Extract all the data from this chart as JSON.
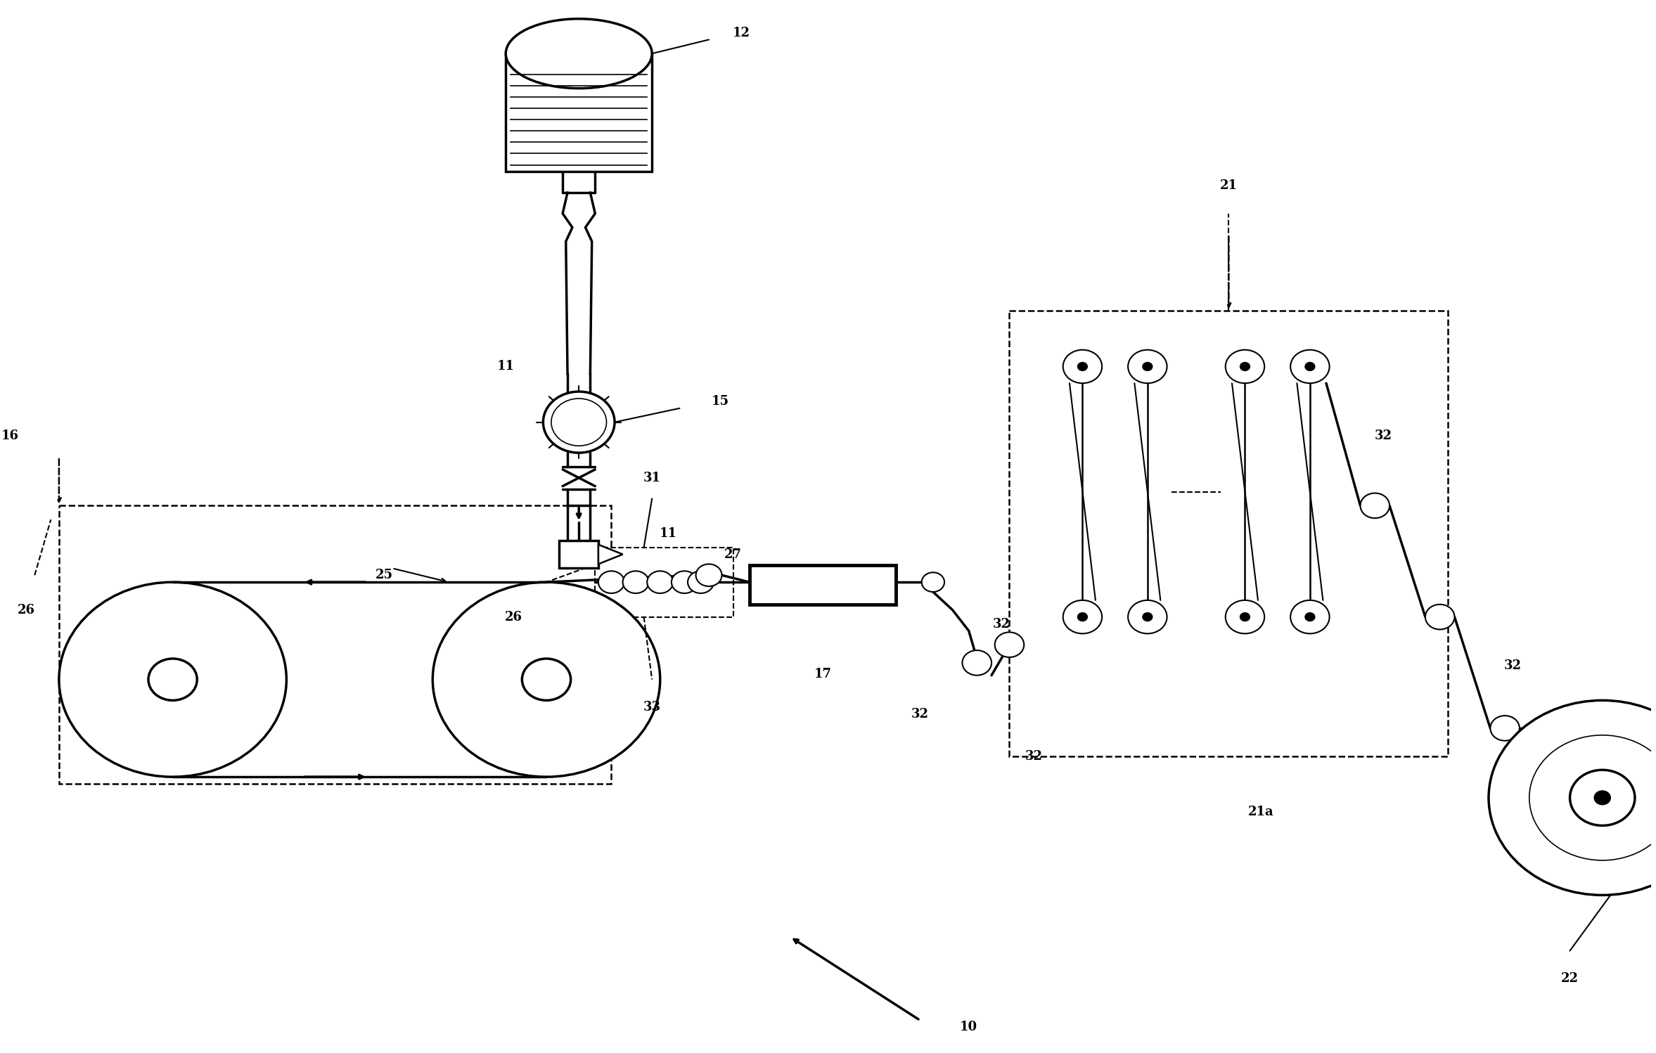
{
  "bg_color": "#ffffff",
  "line_color": "#000000",
  "fig_width": 23.55,
  "fig_height": 14.98
}
